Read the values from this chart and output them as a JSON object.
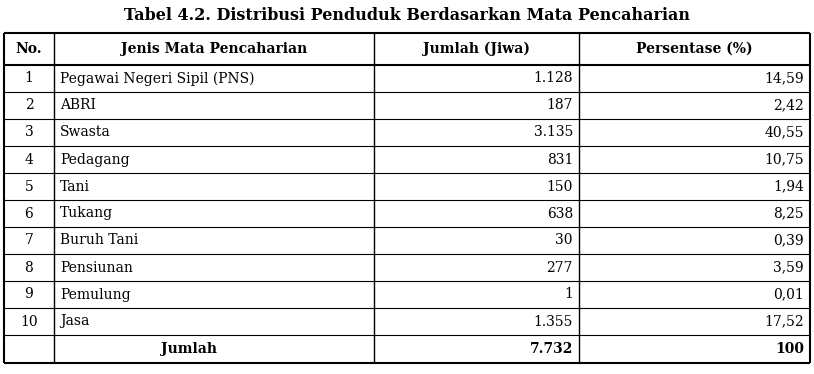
{
  "title": "Tabel 4.2. Distribusi Penduduk Berdasarkan Mata Pencaharian",
  "columns": [
    "No.",
    "Jenis Mata Pencaharian",
    "Jumlah (Jiwa)",
    "Persentase (%)"
  ],
  "rows": [
    [
      "1",
      "Pegawai Negeri Sipil (PNS)",
      "1.128",
      "14,59"
    ],
    [
      "2",
      "ABRI",
      "187",
      "2,42"
    ],
    [
      "3",
      "Swasta",
      "3.135",
      "40,55"
    ],
    [
      "4",
      "Pedagang",
      "831",
      "10,75"
    ],
    [
      "5",
      "Tani",
      "150",
      "1,94"
    ],
    [
      "6",
      "Tukang",
      "638",
      "8,25"
    ],
    [
      "7",
      "Buruh Tani",
      "30",
      "0,39"
    ],
    [
      "8",
      "Pensiunan",
      "277",
      "3,59"
    ],
    [
      "9",
      "Pemulung",
      "1",
      "0,01"
    ],
    [
      "10",
      "Jasa",
      "1.355",
      "17,52"
    ]
  ],
  "footer": [
    "",
    "Jumlah",
    "7.732",
    "100"
  ],
  "title_fontsize": 11.5,
  "header_fontsize": 10,
  "cell_fontsize": 10,
  "footer_fontsize": 10,
  "bg_color": "#ffffff",
  "line_color": "#000000",
  "title_color": "#000000",
  "fig_width": 8.14,
  "fig_height": 3.74,
  "dpi": 100
}
